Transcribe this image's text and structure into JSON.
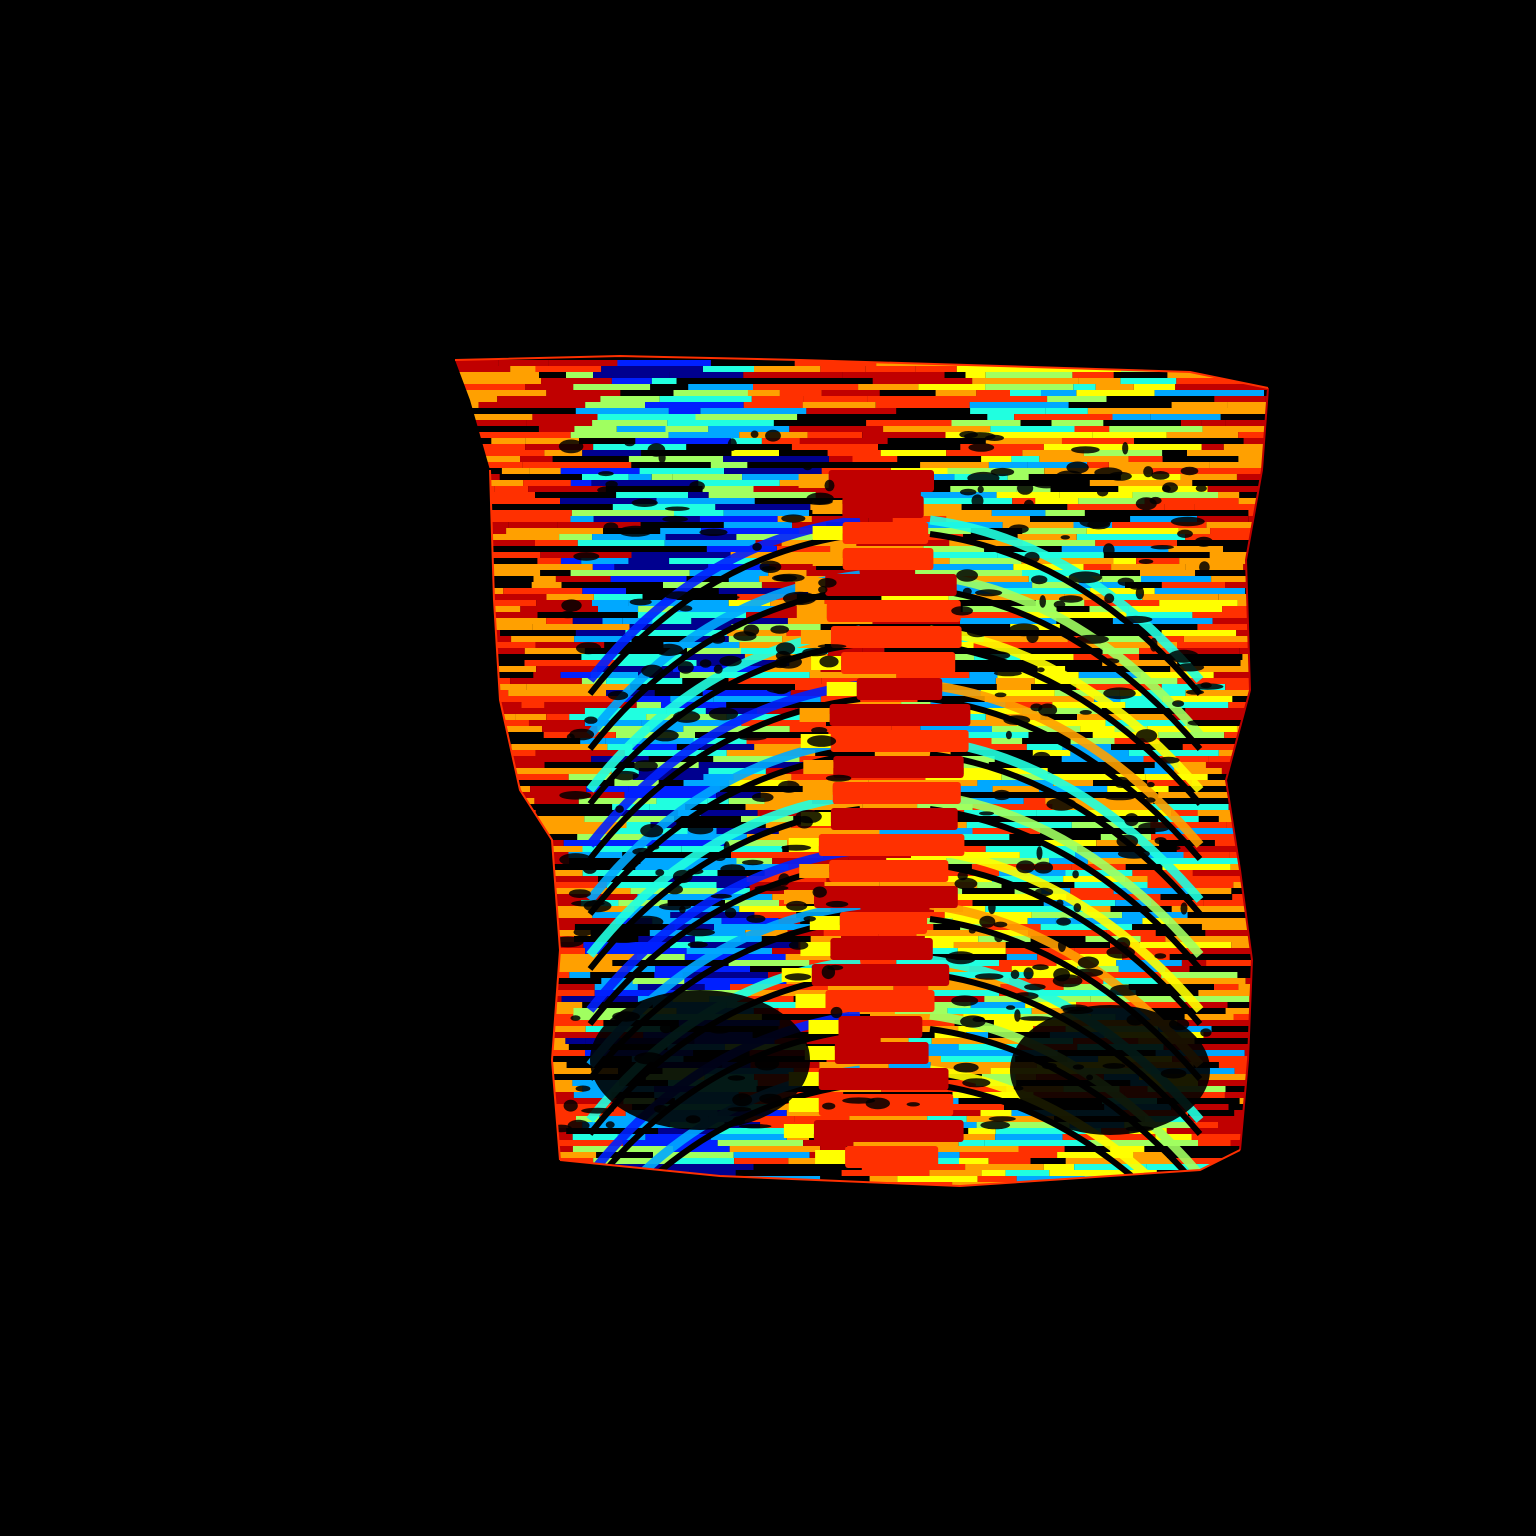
{
  "scene": {
    "background": "#000000",
    "colormap": [
      "#00008f",
      "#0020ff",
      "#00a8ff",
      "#20ffe0",
      "#a0ff60",
      "#ffff00",
      "#ffa000",
      "#ff3000",
      "#c00000"
    ],
    "subject": "torso-ribcage-rendering"
  }
}
